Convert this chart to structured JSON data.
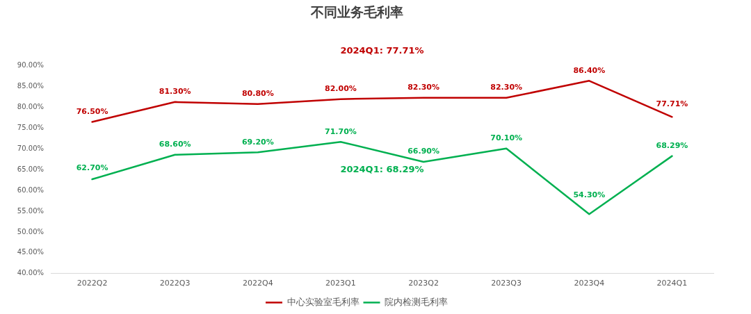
{
  "chart_data": {
    "type": "line",
    "title": "不同业务毛利率",
    "categories": [
      "2022Q2",
      "2022Q3",
      "2022Q4",
      "2023Q1",
      "2023Q2",
      "2023Q3",
      "2023Q4",
      "2024Q1"
    ],
    "series": [
      {
        "name": "中心实验室毛利率",
        "color": "#c00000",
        "values": [
          76.5,
          81.3,
          80.8,
          82.0,
          82.3,
          82.3,
          86.4,
          77.71
        ],
        "value_labels": [
          "76.50%",
          "81.30%",
          "80.80%",
          "82.00%",
          "82.30%",
          "82.30%",
          "86.40%",
          "77.71%"
        ]
      },
      {
        "name": "院内检测毛利率",
        "color": "#00b050",
        "values": [
          62.7,
          68.6,
          69.2,
          71.7,
          66.9,
          70.1,
          54.3,
          68.29
        ],
        "value_labels": [
          "62.70%",
          "68.60%",
          "69.20%",
          "71.70%",
          "66.90%",
          "70.10%",
          "54.30%",
          "68.29%"
        ]
      }
    ],
    "ylim": [
      40,
      90
    ],
    "yticks": [
      {
        "value": 40,
        "label": "40.00%"
      },
      {
        "value": 45,
        "label": "45.00%"
      },
      {
        "value": 50,
        "label": "50.00%"
      },
      {
        "value": 55,
        "label": "55.00%"
      },
      {
        "value": 60,
        "label": "60.00%"
      },
      {
        "value": 65,
        "label": "65.00%"
      },
      {
        "value": 70,
        "label": "70.00%"
      },
      {
        "value": 75,
        "label": "75.00%"
      },
      {
        "value": 80,
        "label": "80.00%"
      },
      {
        "value": 85,
        "label": "85.00%"
      },
      {
        "value": 90,
        "label": "90.00%"
      }
    ],
    "annotations": [
      "2024Q1: 77.71%",
      "2024Q1: 68.29%"
    ],
    "grid": false,
    "legend": "bottom",
    "marker": "none",
    "line_style": "solid"
  }
}
